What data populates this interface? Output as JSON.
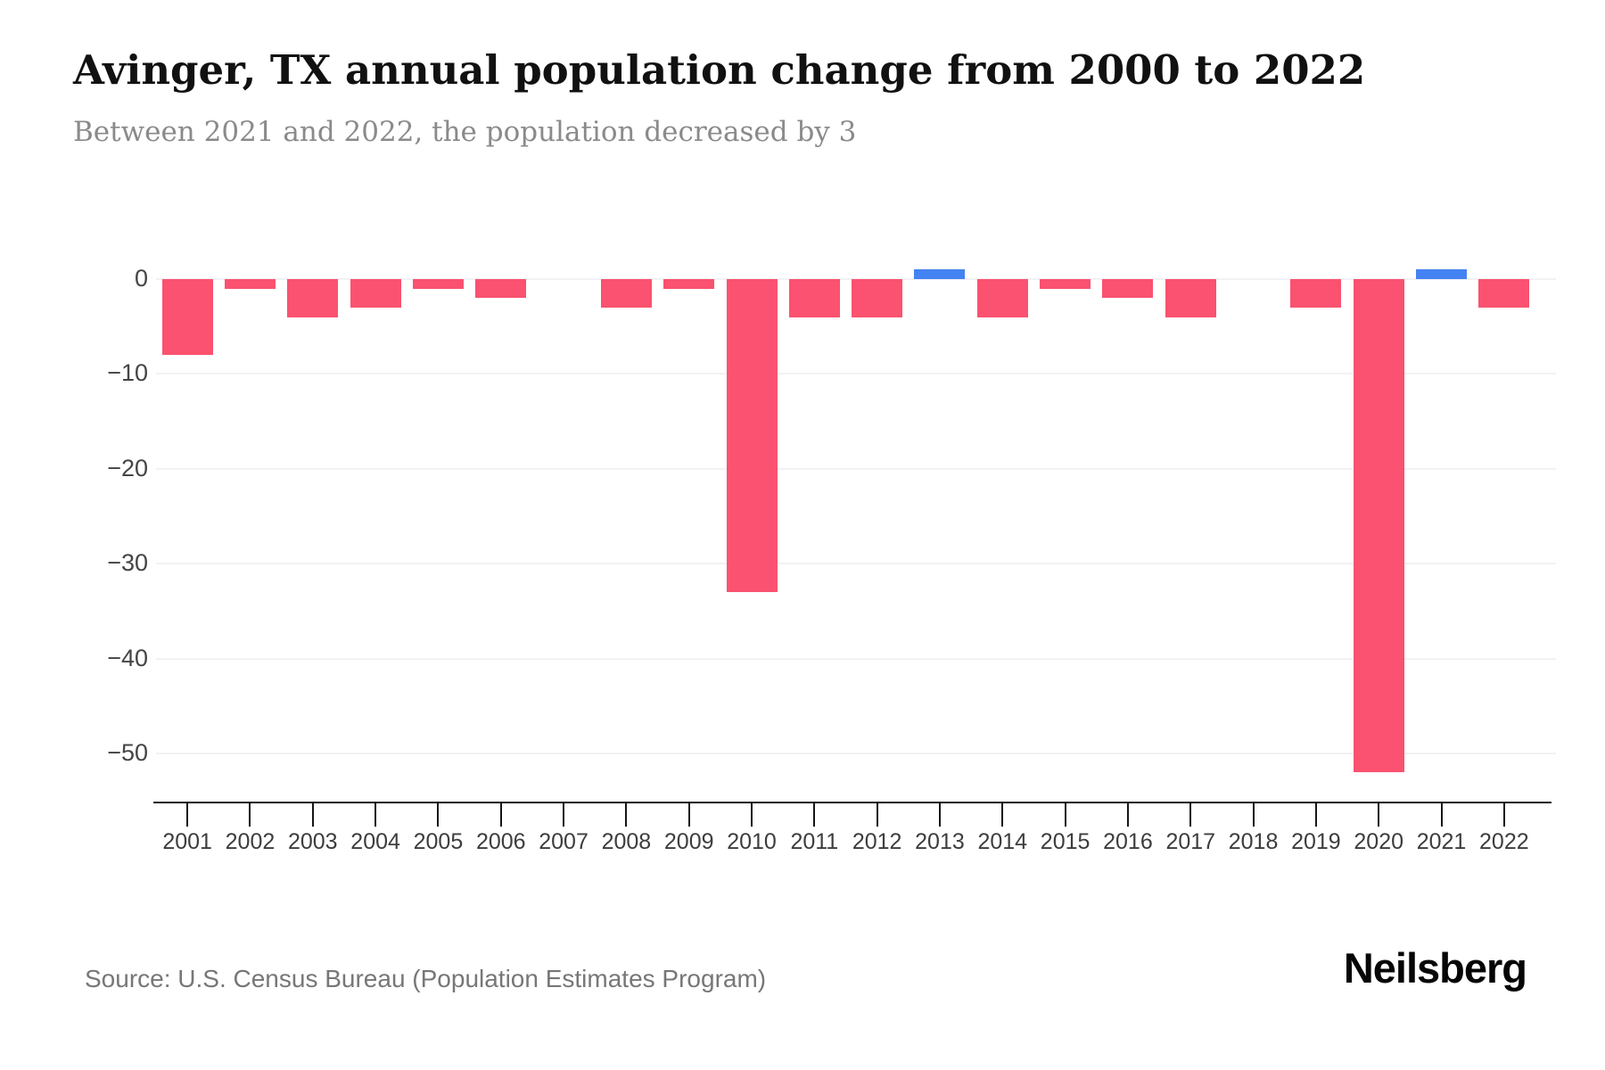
{
  "header": {
    "title": "Avinger, TX annual population change from 2000 to 2022",
    "subtitle": "Between 2021 and 2022, the population decreased by 3"
  },
  "chart_data": {
    "type": "bar",
    "title": "Avinger, TX annual population change from 2000 to 2022",
    "xlabel": "",
    "ylabel": "",
    "categories": [
      "2001",
      "2002",
      "2003",
      "2004",
      "2005",
      "2006",
      "2007",
      "2008",
      "2009",
      "2010",
      "2011",
      "2012",
      "2013",
      "2014",
      "2015",
      "2016",
      "2017",
      "2018",
      "2019",
      "2020",
      "2021",
      "2022"
    ],
    "values": [
      -8,
      -1,
      -4,
      -3,
      -1,
      -2,
      0,
      -3,
      -1,
      -33,
      -4,
      -4,
      1,
      -4,
      -1,
      -2,
      -4,
      0,
      -3,
      -52,
      1,
      -3
    ],
    "ylim": [
      -55,
      3
    ],
    "yticks": [
      0,
      -10,
      -20,
      -30,
      -40,
      -50
    ],
    "ytick_labels": [
      "0",
      "−10",
      "−20",
      "−30",
      "−40",
      "−50"
    ],
    "grid": true,
    "legend": "none",
    "colors": {
      "negative_bar": "#FA5270",
      "positive_bar": "#4483F2",
      "gridline": "#f2f2f4",
      "axis": "#161616",
      "tick_label": "#3d3d3d"
    }
  },
  "footer": {
    "source": "Source: U.S. Census Bureau (Population Estimates Program)",
    "brand": "Neilsberg"
  }
}
